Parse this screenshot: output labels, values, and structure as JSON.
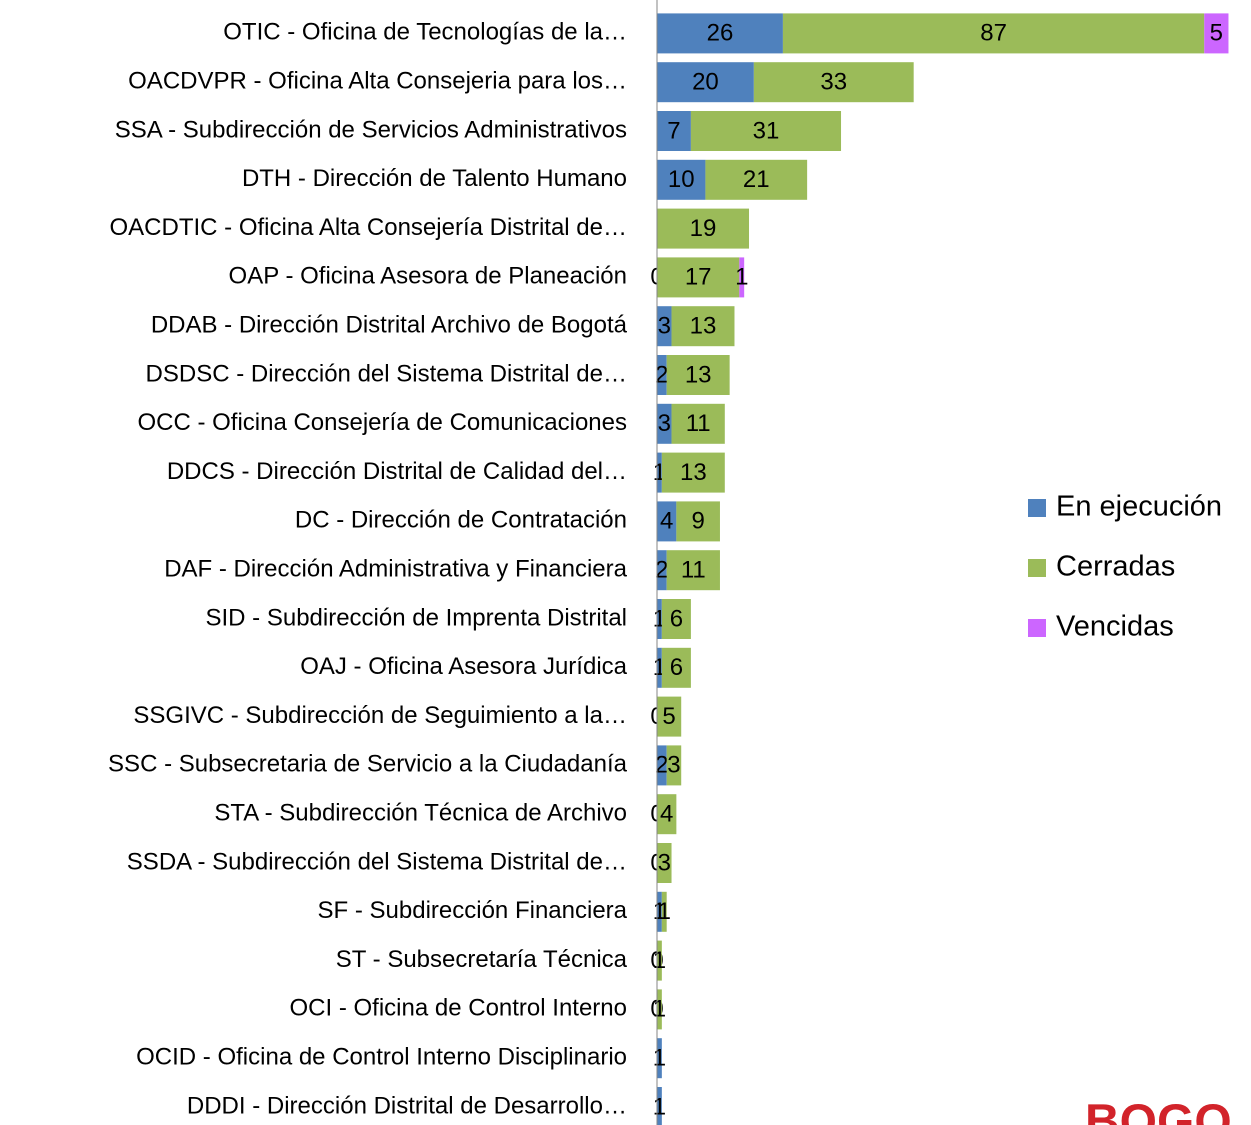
{
  "chart_data": {
    "type": "bar",
    "orientation": "horizontal",
    "stacked": true,
    "categories": [
      "OTIC - Oficina de Tecnologías de la…",
      "OACDVPR - Oficina Alta Consejeria para los…",
      "SSA - Subdirección de Servicios Administrativos",
      "DTH - Dirección de Talento Humano",
      "OACDTIC - Oficina Alta Consejería Distrital de…",
      "OAP - Oficina Asesora de Planeación",
      "DDAB - Dirección Distrital Archivo de Bogotá",
      "DSDSC - Dirección del Sistema Distrital de…",
      "OCC - Oficina Consejería de Comunicaciones",
      "DDCS - Dirección Distrital de Calidad del…",
      "DC - Dirección de Contratación",
      "DAF - Dirección Administrativa y Financiera",
      "SID - Subdirección de Imprenta Distrital",
      "OAJ - Oficina Asesora Jurídica",
      "SSGIVC - Subdirección de Seguimiento a la…",
      "SSC - Subsecretaria de Servicio a la Ciudadanía",
      "STA - Subdirección Técnica de Archivo",
      "SSDA - Subdirección del Sistema Distrital de…",
      "SF - Subdirección Financiera",
      "ST - Subsecretaría Técnica",
      "OCI - Oficina de Control Interno",
      "OCID - Oficina de Control Interno Disciplinario",
      "DDDI - Dirección Distrital de Desarrollo…"
    ],
    "series": [
      {
        "name": "En ejecución",
        "color": "#4f81bd",
        "values": [
          26,
          20,
          7,
          10,
          null,
          0,
          3,
          2,
          3,
          1,
          4,
          2,
          1,
          1,
          0,
          2,
          0,
          0,
          1,
          0,
          0,
          1,
          1
        ]
      },
      {
        "name": "Cerradas",
        "color": "#9bbb59",
        "values": [
          87,
          33,
          31,
          21,
          19,
          17,
          13,
          13,
          11,
          13,
          9,
          11,
          6,
          6,
          5,
          3,
          4,
          3,
          1,
          1,
          1,
          null,
          null
        ]
      },
      {
        "name": "Vencidas",
        "color": "#cc66ff",
        "values": [
          5,
          null,
          null,
          null,
          null,
          1,
          null,
          null,
          null,
          null,
          null,
          null,
          null,
          null,
          null,
          null,
          null,
          null,
          null,
          null,
          null,
          null,
          null
        ]
      }
    ],
    "xlim": [
      0,
      121
    ],
    "legend": "right",
    "logo_text": "BOGO"
  }
}
